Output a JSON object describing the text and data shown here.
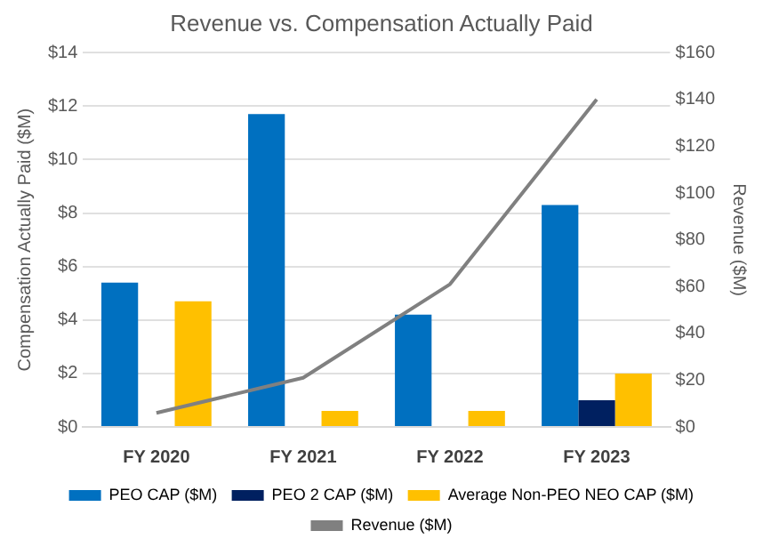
{
  "chart_data": {
    "type": "bar",
    "title": "Revenue vs. Compensation Actually Paid",
    "categories": [
      "FY 2020",
      "FY 2021",
      "FY 2022",
      "FY 2023"
    ],
    "ylabel": "Compensation Actually Paid ($M)",
    "y2label": "Revenue ($M)",
    "series": [
      {
        "name": "PEO CAP ($M)",
        "color": "#0070c0",
        "values": [
          5.4,
          11.7,
          4.2,
          8.3
        ]
      },
      {
        "name": "PEO 2 CAP ($M)",
        "color": "#002060",
        "values": [
          null,
          null,
          null,
          1.0
        ]
      },
      {
        "name": "Average Non-PEO NEO CAP ($M)",
        "color": "#ffc000",
        "values": [
          4.7,
          0.6,
          0.6,
          2.0
        ]
      },
      {
        "name": "Revenue ($M)",
        "type": "line",
        "axis": "y2",
        "color": "#808080",
        "values": [
          6,
          21,
          61,
          140
        ]
      }
    ],
    "ylim": [
      0,
      14
    ],
    "yticks": [
      {
        "value": 0,
        "label": "$0"
      },
      {
        "value": 2,
        "label": "$2"
      },
      {
        "value": 4,
        "label": "$4"
      },
      {
        "value": 6,
        "label": "$6"
      },
      {
        "value": 8,
        "label": "$8"
      },
      {
        "value": 10,
        "label": "$10"
      },
      {
        "value": 12,
        "label": "$12"
      },
      {
        "value": 14,
        "label": "$14"
      }
    ],
    "y2lim": [
      0,
      160
    ],
    "y2ticks": [
      {
        "value": 0,
        "label": "$0"
      },
      {
        "value": 20,
        "label": "$20"
      },
      {
        "value": 40,
        "label": "$40"
      },
      {
        "value": 60,
        "label": "$60"
      },
      {
        "value": 80,
        "label": "$80"
      },
      {
        "value": 100,
        "label": "$100"
      },
      {
        "value": 120,
        "label": "$120"
      },
      {
        "value": 140,
        "label": "$140"
      },
      {
        "value": 160,
        "label": "$160"
      }
    ],
    "grid": "y",
    "legend": "bottom",
    "marker": "none"
  }
}
